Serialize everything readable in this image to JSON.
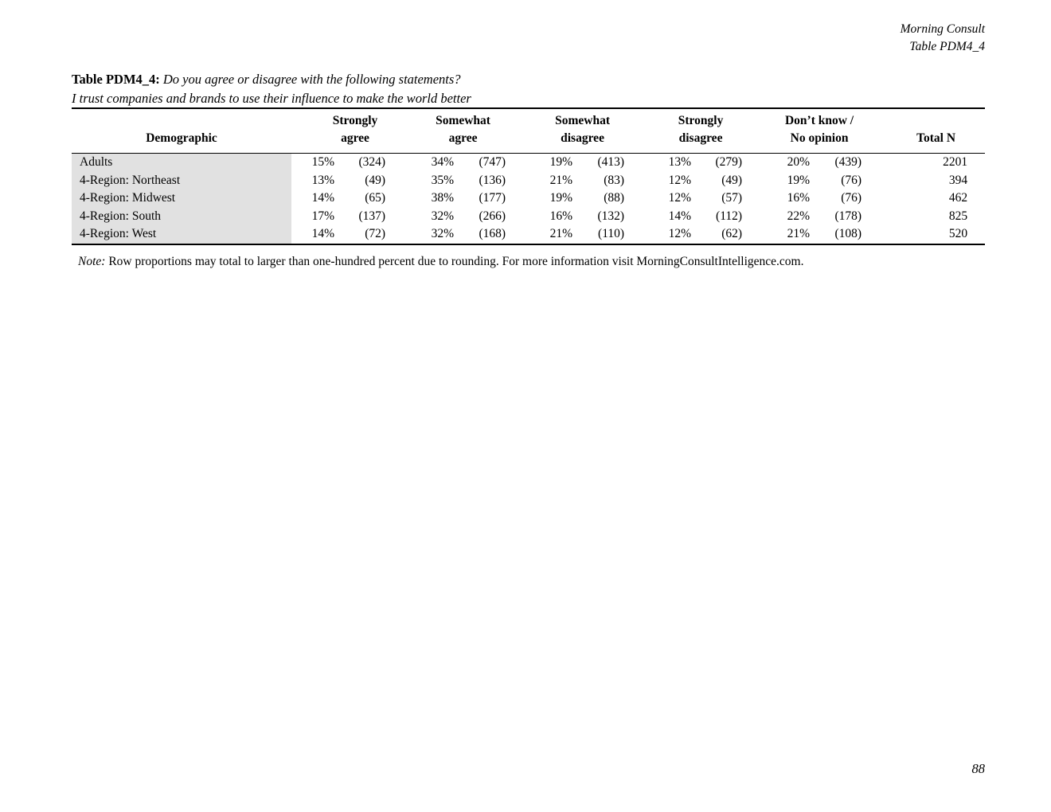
{
  "doc_header": {
    "org": "Morning Consult",
    "table_ref": "Table PDM4_4"
  },
  "title": {
    "label": "Table PDM4_4:",
    "question": "Do you agree or disagree with the following statements?",
    "statement": "I trust companies and brands to use their influence to make the world better"
  },
  "table": {
    "headers": {
      "demographic": "Demographic",
      "strongly_agree": "Strongly agree",
      "somewhat_agree": "Somewhat\nagree",
      "somewhat_disagree": "Somewhat\ndisagree",
      "strongly_disagree": "Strongly\ndisagree",
      "dont_know": "Don’t know /\nNo opinion",
      "total_n": "Total N"
    },
    "rows": [
      {
        "demographic": "Adults",
        "cells": [
          "15%",
          "(324)",
          "34%",
          "(747)",
          "19%",
          "(413)",
          "13%",
          "(279)",
          "20%",
          "(439)"
        ],
        "total": "2201"
      },
      {
        "demographic": "4-Region: Northeast",
        "cells": [
          "13%",
          "(49)",
          "35%",
          "(136)",
          "21%",
          "(83)",
          "12%",
          "(49)",
          "19%",
          "(76)"
        ],
        "total": "394"
      },
      {
        "demographic": "4-Region: Midwest",
        "cells": [
          "14%",
          "(65)",
          "38%",
          "(177)",
          "19%",
          "(88)",
          "12%",
          "(57)",
          "16%",
          "(76)"
        ],
        "total": "462"
      },
      {
        "demographic": "4-Region: South",
        "cells": [
          "17%",
          "(137)",
          "32%",
          "(266)",
          "16%",
          "(132)",
          "14%",
          "(112)",
          "22%",
          "(178)"
        ],
        "total": "825"
      },
      {
        "demographic": "4-Region: West",
        "cells": [
          "14%",
          "(72)",
          "32%",
          "(168)",
          "21%",
          "(110)",
          "12%",
          "(62)",
          "21%",
          "(108)"
        ],
        "total": "520"
      }
    ]
  },
  "note": {
    "label": "Note:",
    "text": "Row proportions may total to larger than one-hundred percent due to rounding. For more information visit MorningConsultIntelligence.com."
  },
  "page_number": "88"
}
